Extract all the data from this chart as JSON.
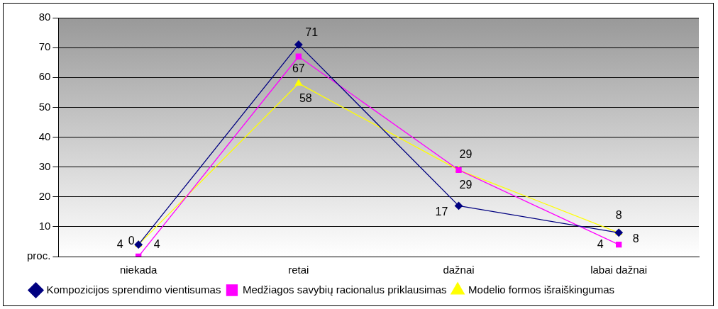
{
  "chart_data": {
    "type": "line",
    "categories": [
      "niekada",
      "retai",
      "dažnai",
      "labai dažnai"
    ],
    "series": [
      {
        "name": "Kompozicijos sprendimo vientisumas",
        "color": "#000080",
        "marker": "diamond",
        "values": [
          4,
          71,
          17,
          8
        ]
      },
      {
        "name": "Medžiagos savybių racionalus priklausimas",
        "color": "#ff00ff",
        "marker": "square",
        "values": [
          0,
          67,
          29,
          4
        ]
      },
      {
        "name": "Modelio formos išraiškingumas",
        "color": "#ffff00",
        "marker": "triangle",
        "values": [
          4,
          58,
          29,
          8
        ]
      }
    ],
    "ylim": [
      0,
      80
    ],
    "yticks": [
      {
        "value": 0,
        "label": "proc."
      },
      10,
      20,
      30,
      40,
      50,
      60,
      70,
      80
    ],
    "grid": "y",
    "legend": "bottom",
    "data_labels": true
  }
}
